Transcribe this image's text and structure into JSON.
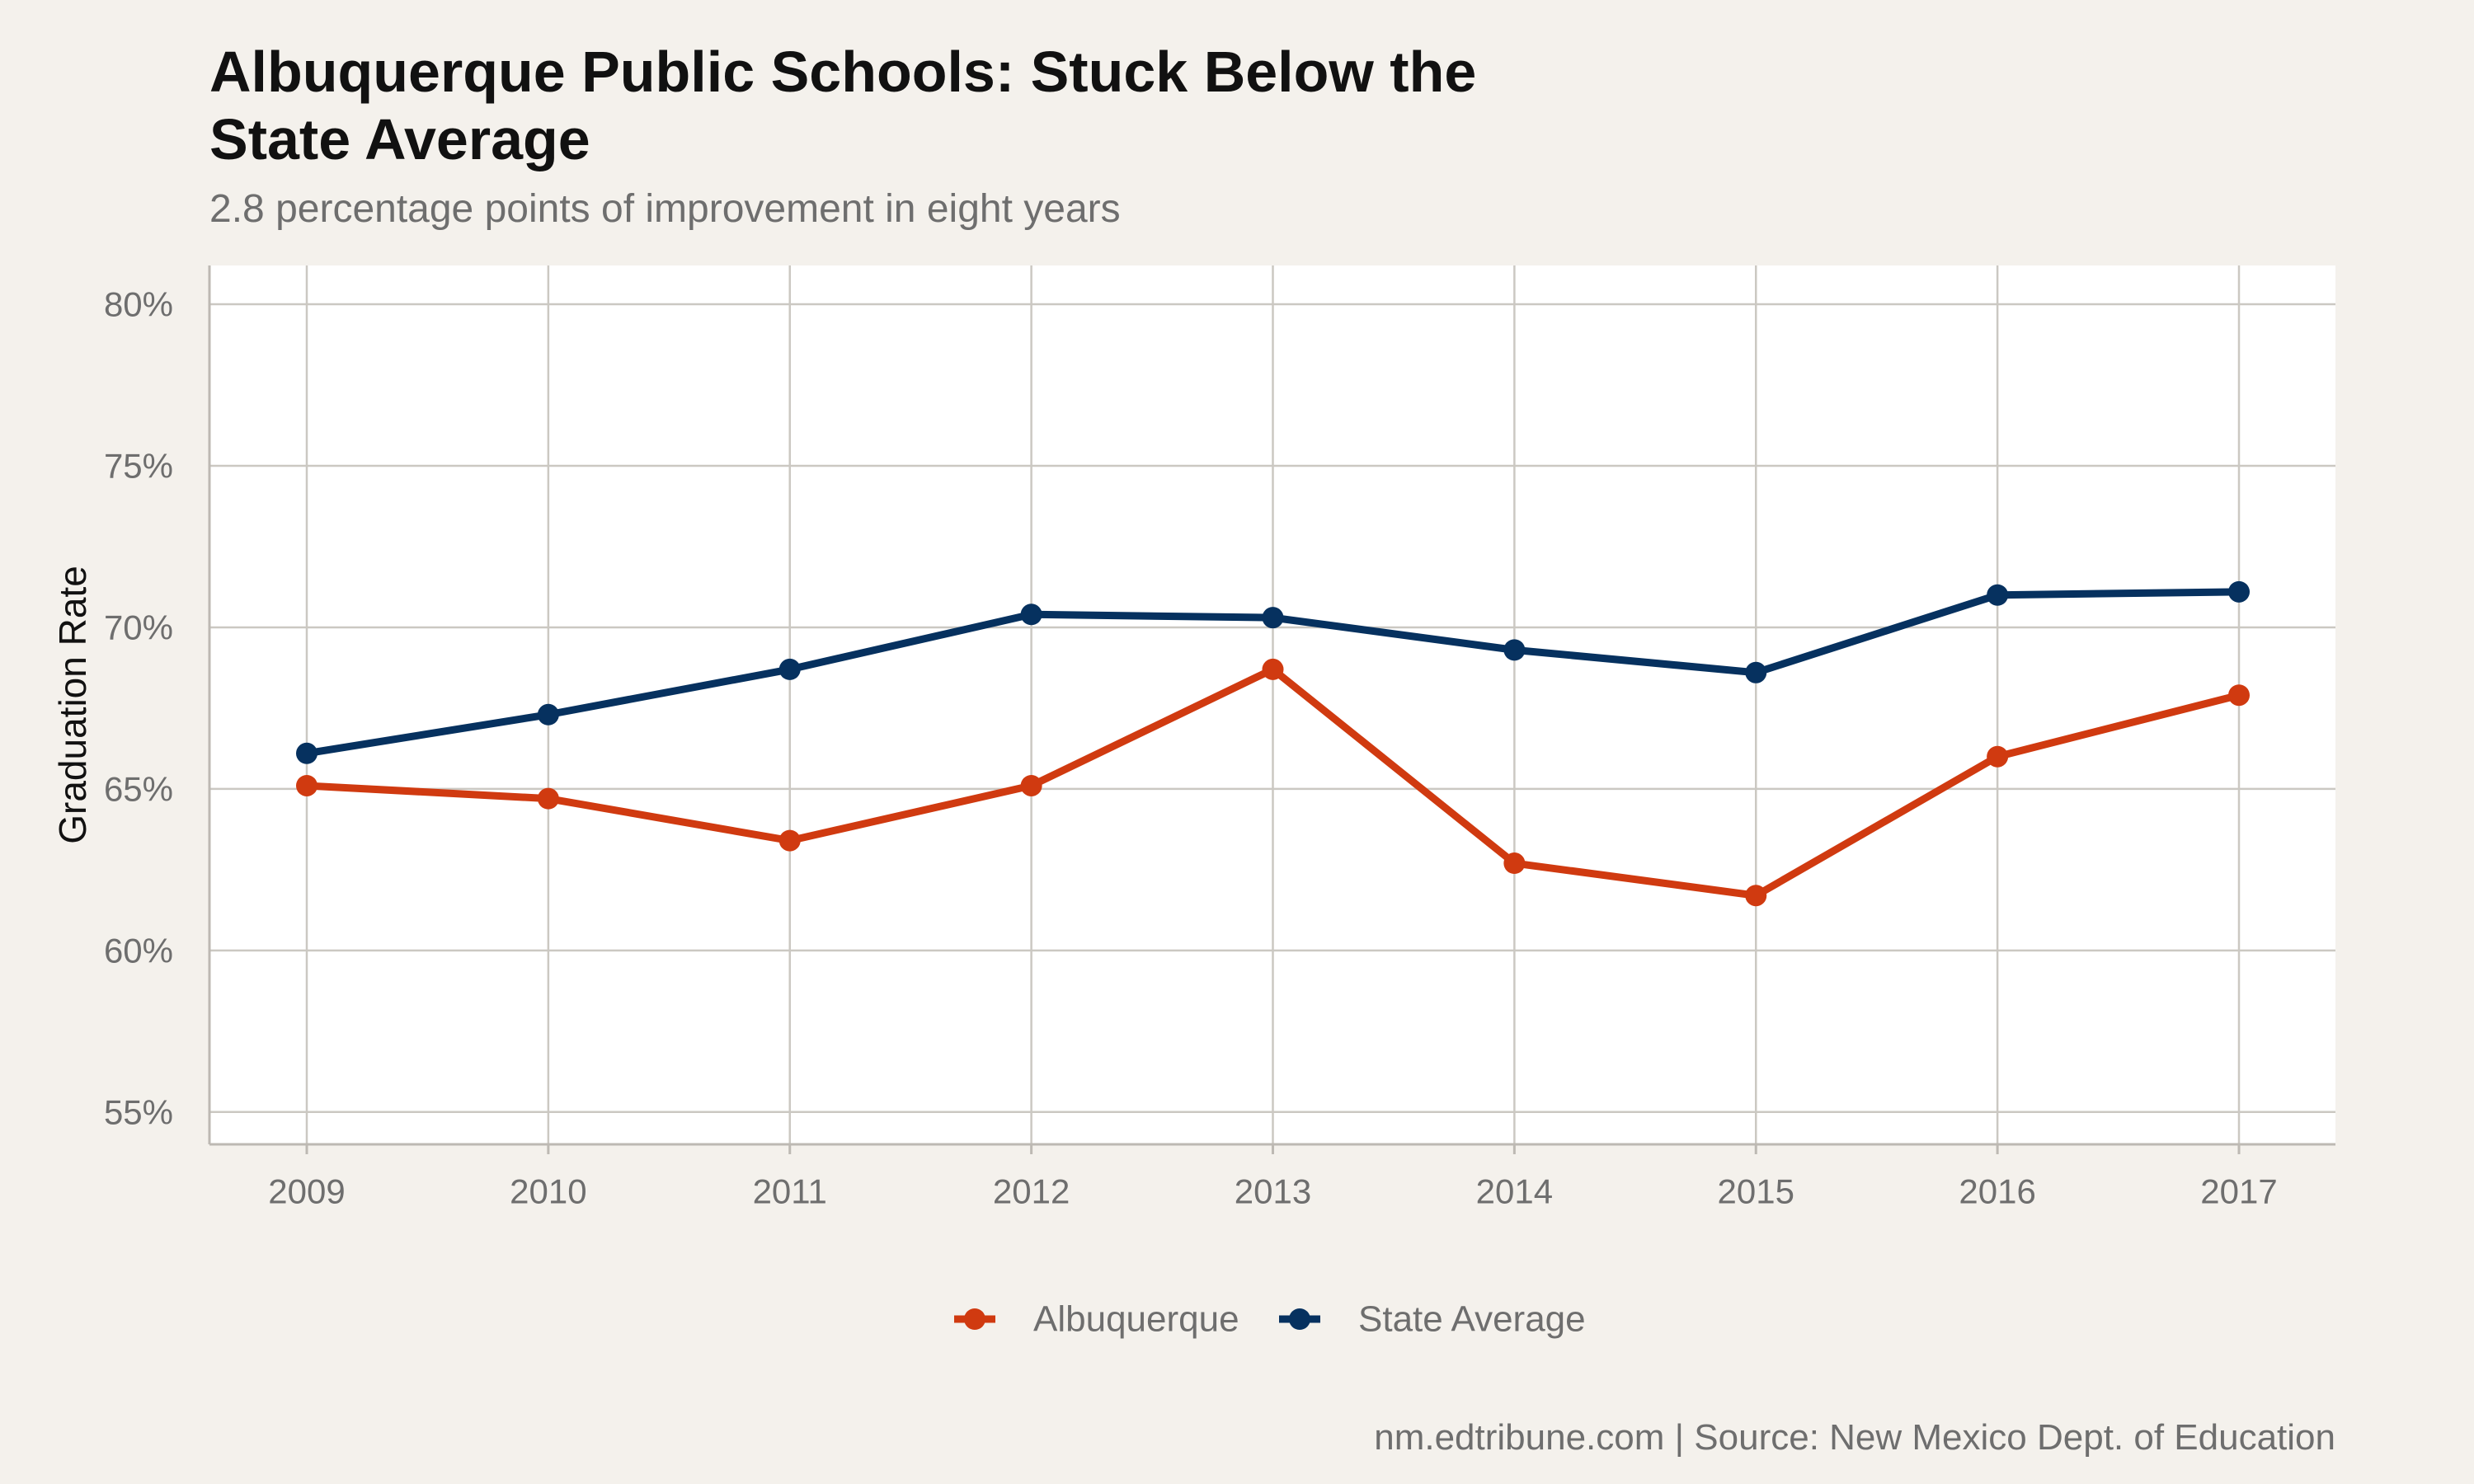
{
  "chart_data": {
    "type": "line",
    "title": "Albuquerque Public Schools: Stuck Below the State Average",
    "subtitle": "2.8 percentage points of improvement in eight years",
    "ylabel": "Graduation Rate",
    "xlabel": "",
    "caption": "nm.edtribune.com | Source: New Mexico Dept. of Education",
    "x": [
      "2009",
      "2010",
      "2011",
      "2012",
      "2013",
      "2014",
      "2015",
      "2016",
      "2017"
    ],
    "ylim": [
      54,
      81.2
    ],
    "yticks": [
      55,
      60,
      65,
      70,
      75,
      80
    ],
    "ytick_labels": [
      "55%",
      "60%",
      "65%",
      "70%",
      "75%",
      "80%"
    ],
    "grid": true,
    "legend_position": "bottom",
    "series": [
      {
        "name": "Albuquerque",
        "color": "#d03a10",
        "values": [
          65.1,
          64.7,
          63.4,
          65.1,
          68.7,
          62.7,
          61.7,
          66.0,
          67.9
        ]
      },
      {
        "name": "State Average",
        "color": "#06315f",
        "values": [
          66.1,
          67.3,
          68.7,
          70.4,
          70.3,
          69.3,
          68.6,
          71.0,
          71.1
        ]
      }
    ]
  }
}
